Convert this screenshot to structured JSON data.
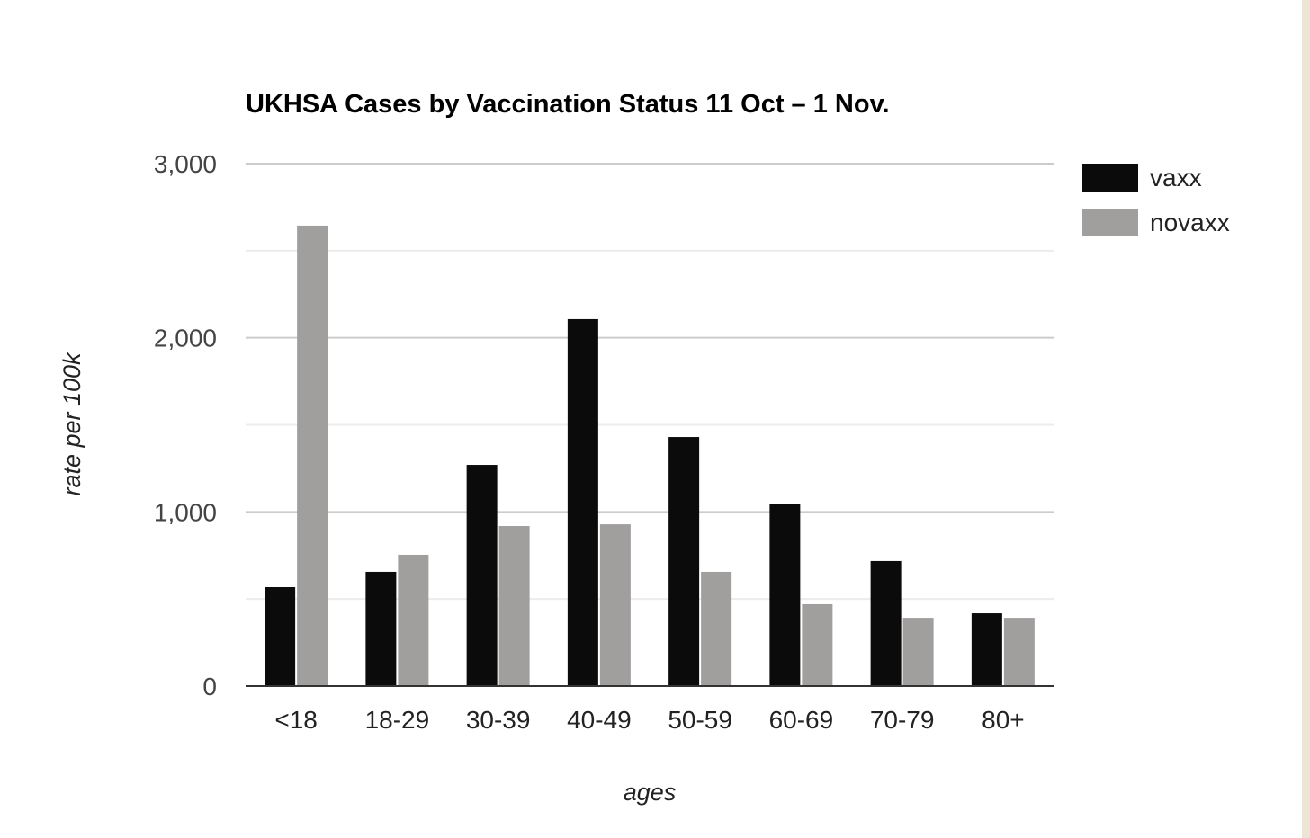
{
  "chart_data": {
    "type": "bar",
    "title": "UKHSA Cases by Vaccination Status 11 Oct – 1 Nov.",
    "xlabel": "ages",
    "ylabel": "rate per 100k",
    "categories": [
      "<18",
      "18-29",
      "30-39",
      "40-49",
      "50-59",
      "60-69",
      "70-79",
      "80+"
    ],
    "series": [
      {
        "name": "vaxx",
        "color": "#0b0b0b",
        "values": [
          568,
          656,
          1270,
          2107,
          1430,
          1043,
          718,
          418
        ]
      },
      {
        "name": "novaxx",
        "color": "#a19e9e",
        "values": [
          2644,
          754,
          919,
          929,
          656,
          470,
          392,
          392
        ]
      }
    ],
    "ylim": [
      0,
      3000
    ],
    "yticks": [
      0,
      1000,
      2000,
      3000
    ],
    "ytick_labels": [
      "0",
      "1,000",
      "2,000",
      "3,000"
    ],
    "grid": true,
    "legend_position": "right"
  },
  "page": {
    "accent_strip_color": "#ede5d3"
  }
}
